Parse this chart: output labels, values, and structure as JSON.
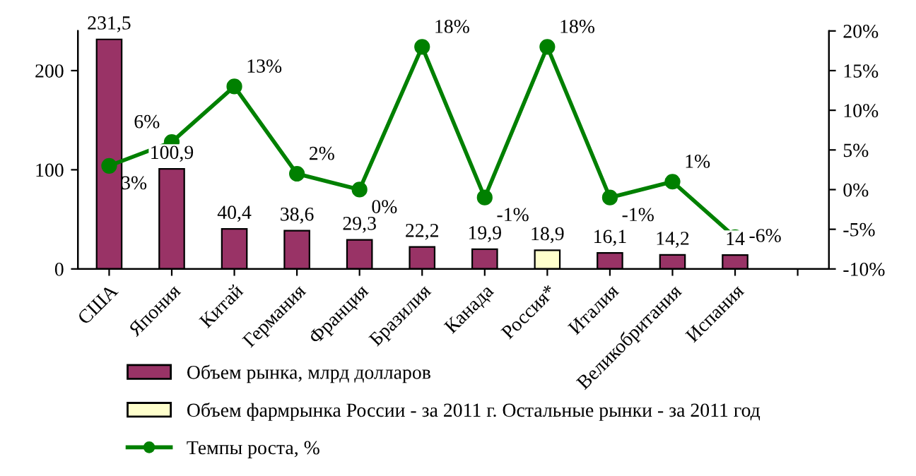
{
  "chart_data": {
    "type": "bar",
    "categories": [
      "США",
      "Япония",
      "Китай",
      "Германия",
      "Франция",
      "Бразилия",
      "Канада",
      "Россия*",
      "Италия",
      "Великобритания",
      "Испания",
      null
    ],
    "series": [
      {
        "name": "Объем рынка, млрд долларов",
        "color": "#993366",
        "values": [
          231.5,
          100.9,
          40.4,
          38.6,
          29.3,
          22.2,
          19.9,
          null,
          16.1,
          14.2,
          14,
          null
        ],
        "value_labels": [
          "231,5",
          "100,9",
          "40,4",
          "38,6",
          "29,3",
          "22,2",
          "19,9",
          null,
          "16,1",
          "14,2",
          "14",
          null
        ]
      },
      {
        "name": "Объем фармрынка России - за 2011 г. Остальные рынки - за 2011 год",
        "color": "#ffffcc",
        "values": [
          null,
          null,
          null,
          null,
          null,
          null,
          null,
          18.9,
          null,
          null,
          null,
          null
        ],
        "value_labels": [
          null,
          null,
          null,
          null,
          null,
          null,
          null,
          "18,9",
          null,
          null,
          null,
          null
        ]
      },
      {
        "name": "Темпы роста, %",
        "type": "line",
        "axis": "y2",
        "color": "#008000",
        "marker": "circle",
        "values": [
          3,
          6,
          13,
          2,
          0,
          18,
          -1,
          18,
          -1,
          1,
          -6,
          null
        ],
        "value_labels": [
          "3%",
          "6%",
          "13%",
          "2%",
          "0%",
          "18%",
          "-1%",
          "18%",
          "-1%",
          "1%",
          "-6%",
          null
        ]
      }
    ],
    "ylim": [
      0,
      240
    ],
    "yticks": [
      0,
      100,
      200
    ],
    "y2lim": [
      -10,
      20
    ],
    "y2ticks": [
      {
        "value": -10,
        "label": "-10%"
      },
      {
        "value": -5,
        "label": "-5%"
      },
      {
        "value": 0,
        "label": "0%"
      },
      {
        "value": 5,
        "label": "5%"
      },
      {
        "value": 10,
        "label": "10%"
      },
      {
        "value": 15,
        "label": "15%"
      },
      {
        "value": 20,
        "label": "20%"
      }
    ],
    "grid": false,
    "legend": "bottom left"
  }
}
